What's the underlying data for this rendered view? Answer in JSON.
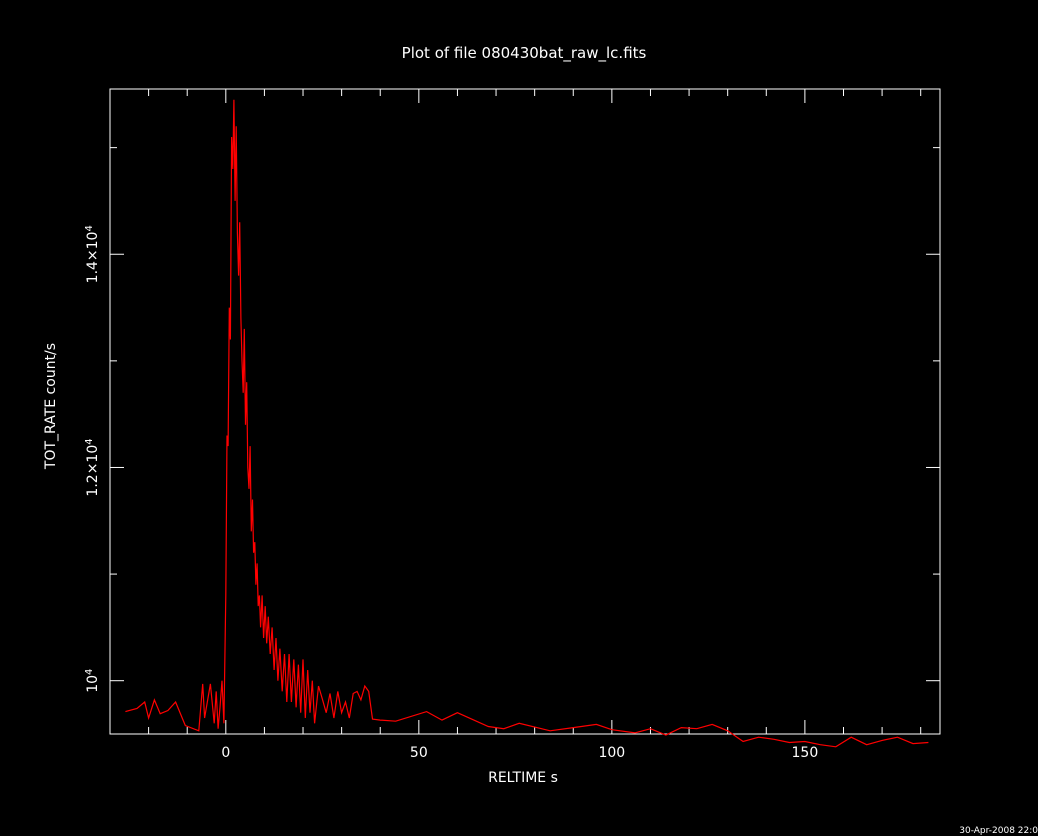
{
  "chart_data": {
    "type": "line",
    "title": "Plot of file 080430bat_raw_lc.fits",
    "xlabel": "RELTIME  s",
    "ylabel": "TOT_RATE  count/s",
    "xlim": [
      -30,
      185
    ],
    "ylim": [
      9500,
      15550
    ],
    "x_ticks": [
      0,
      50,
      100,
      150
    ],
    "x_tick_labels": [
      "0",
      "50",
      "100",
      "150"
    ],
    "y_ticks": [
      10000,
      12000,
      14000
    ],
    "y_tick_mantissa": [
      "",
      "1.2×",
      "1.4×"
    ],
    "y_tick_base": "10",
    "y_tick_exp": "4",
    "grid": false,
    "series": [
      {
        "color": "#ff0000",
        "x": [
          -26,
          -23,
          -21,
          -20,
          -18.5,
          -17,
          -15,
          -13,
          -10.5,
          -7,
          -6,
          -5.5,
          -4,
          -3,
          -2.5,
          -2,
          -1.5,
          -1,
          -0.5,
          0,
          0.3,
          0.6,
          0.9,
          1.2,
          1.5,
          1.8,
          2.1,
          2.4,
          2.7,
          3.0,
          3.3,
          3.6,
          3.9,
          4.2,
          4.5,
          4.8,
          5.1,
          5.4,
          5.7,
          6.0,
          6.3,
          6.6,
          6.9,
          7.2,
          7.5,
          7.8,
          8.1,
          8.4,
          8.7,
          9.0,
          9.4,
          9.8,
          10.2,
          10.6,
          11.0,
          11.5,
          12.0,
          12.5,
          13.0,
          13.5,
          14.0,
          14.6,
          15.2,
          15.8,
          16.4,
          17.0,
          17.6,
          18.2,
          18.8,
          19.4,
          20.0,
          20.6,
          21.2,
          21.8,
          22.4,
          23.0,
          24.0,
          25.0,
          26.0,
          27.0,
          28.0,
          29.0,
          30.0,
          31.0,
          32.0,
          33.0,
          34.0,
          35.0,
          36.0,
          37.0,
          38.0,
          40.0,
          44.0,
          52.0,
          56.0,
          60.0,
          68.0,
          72.0,
          76.0,
          84.0,
          90.0,
          96.0,
          100.0,
          106.0,
          110.0,
          114.0,
          118.0,
          122.0,
          126.0,
          130.0,
          134.0,
          138.0,
          142.0,
          146.0,
          150.0,
          154.0,
          158.0,
          162.0,
          166.0,
          170.0,
          174.0,
          178.0,
          182.0
        ],
        "y": [
          9710,
          9740,
          9800,
          9650,
          9820,
          9690,
          9720,
          9800,
          9580,
          9530,
          9970,
          9650,
          9970,
          9600,
          9900,
          9550,
          9750,
          10000,
          9600,
          10800,
          12300,
          12200,
          13500,
          13200,
          15100,
          14800,
          15450,
          14500,
          15200,
          14200,
          13800,
          14300,
          13400,
          13000,
          12700,
          13300,
          12400,
          12800,
          12000,
          11800,
          12200,
          11400,
          11700,
          11200,
          11300,
          10900,
          11100,
          10700,
          10800,
          10500,
          10800,
          10400,
          10700,
          10350,
          10600,
          10250,
          10500,
          10100,
          10400,
          10000,
          10300,
          9900,
          10250,
          9800,
          10250,
          9800,
          10200,
          9750,
          10150,
          9700,
          10200,
          9650,
          10100,
          9700,
          10000,
          9600,
          9950,
          9830,
          9700,
          9880,
          9650,
          9900,
          9700,
          9800,
          9650,
          9880,
          9900,
          9820,
          9950,
          9900,
          9640,
          9630,
          9620,
          9710,
          9630,
          9700,
          9570,
          9550,
          9600,
          9530,
          9560,
          9590,
          9540,
          9510,
          9550,
          9490,
          9560,
          9550,
          9590,
          9530,
          9430,
          9470,
          9450,
          9420,
          9430,
          9400,
          9380,
          9470,
          9400,
          9440,
          9470,
          9410,
          9420
        ]
      }
    ]
  },
  "timestamp": "30-Apr-2008 22:0"
}
